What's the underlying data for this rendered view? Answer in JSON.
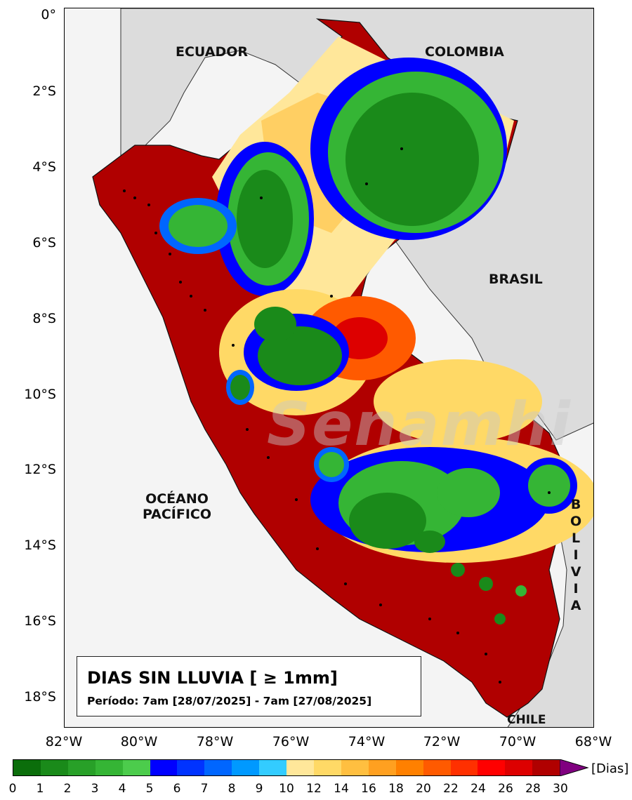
{
  "title": "DIAS SIN LLUVIA [ ≥ 1mm]",
  "period": "Período: 7am [28/07/2025] - 7am [27/08/2025]",
  "y_ticks": [
    "0°",
    "2°S",
    "4°S",
    "6°S",
    "8°S",
    "10°S",
    "12°S",
    "14°S",
    "16°S",
    "18°S"
  ],
  "x_ticks": [
    "82°W",
    "80°W",
    "78°W",
    "76°W",
    "74°W",
    "72°W",
    "70°W",
    "68°W"
  ],
  "labels": {
    "ecuador": "ECUADOR",
    "colombia": "COLOMBIA",
    "brasil": "BRASIL",
    "oceano_line1": "OCÉANO",
    "oceano_line2": "PACÍFICO",
    "bolivia": "B\nO\nL\nI\nV\nI\nA",
    "chile": "CHILE"
  },
  "watermark": "Senamhi",
  "colorbar": {
    "unit": "[Dias]",
    "ticks": [
      "0",
      "1",
      "2",
      "3",
      "4",
      "5",
      "6",
      "7",
      "8",
      "9",
      "10",
      "12",
      "14",
      "16",
      "18",
      "20",
      "22",
      "24",
      "26",
      "28",
      "30"
    ],
    "colors": [
      "#0b6e0b",
      "#1a8a1a",
      "#28a028",
      "#35b535",
      "#4ccc4c",
      "#0000ff",
      "#0033ff",
      "#0066ff",
      "#0099ff",
      "#33ccff",
      "#ffe79a",
      "#ffd966",
      "#ffbf40",
      "#ffa020",
      "#ff8000",
      "#ff5a00",
      "#ff3000",
      "#ff0000",
      "#dd0000",
      "#b00000"
    ],
    "extend_color": "#800080"
  }
}
